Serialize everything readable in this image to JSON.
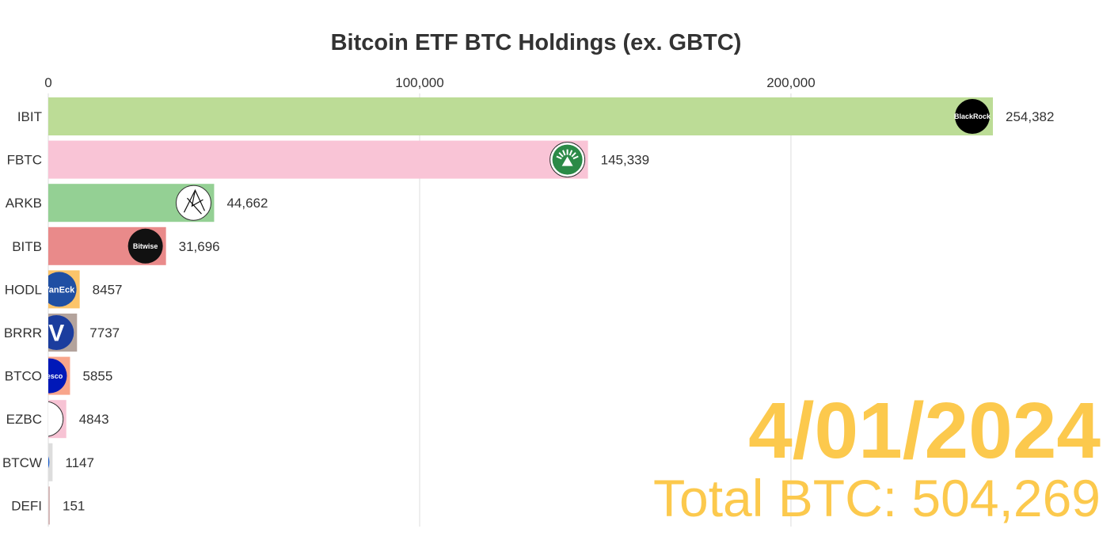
{
  "chart_data": {
    "type": "bar",
    "orientation": "horizontal",
    "title": "Bitcoin ETF BTC Holdings (ex. GBTC)",
    "xlim": [
      0,
      290000
    ],
    "x_ticks": [
      0,
      100000,
      200000
    ],
    "x_tick_labels": [
      "0",
      "100,000",
      "200,000"
    ],
    "grid": true,
    "categories": [
      "IBIT",
      "FBTC",
      "ARKB",
      "BITB",
      "HODL",
      "BRRR",
      "BTCO",
      "EZBC",
      "BTCW",
      "DEFI"
    ],
    "values": [
      254382,
      145339,
      44662,
      31696,
      8457,
      7737,
      5855,
      4843,
      1147,
      151
    ],
    "value_labels": [
      "254,382",
      "145,339",
      "44,662",
      "31,696",
      "8457",
      "7737",
      "5855",
      "4843",
      "1147",
      "151"
    ],
    "colors": [
      "#bcdc96",
      "#f9c4d6",
      "#94d094",
      "#e98a8a",
      "#fbc46a",
      "#b3a39c",
      "#f8a58b",
      "#f7c3d4",
      "#dddddd",
      "#d5b9b9"
    ],
    "logos": [
      {
        "icon": "blackrock-logo",
        "text": "BlackRock",
        "bg": "#000000",
        "fg": "#ffffff"
      },
      {
        "icon": "fidelity-logo",
        "text": "",
        "bg": "#ffffff",
        "fg": "#2b8a47"
      },
      {
        "icon": "ark-invest-logo",
        "text": "",
        "bg": "#ffffff",
        "fg": "#111111"
      },
      {
        "icon": "bitwise-logo",
        "text": "Bitwise",
        "bg": "#111111",
        "fg": "#ffffff"
      },
      {
        "icon": "vaneck-logo",
        "text": "VanEck",
        "bg": "#1f4fa3",
        "fg": "#ffffff"
      },
      {
        "icon": "valkyrie-logo",
        "text": "V",
        "bg": "#1b3d9e",
        "fg": "#ffffff"
      },
      {
        "icon": "invesco-logo",
        "text": "Invesco",
        "bg": "#0018b8",
        "fg": "#ffffff"
      },
      {
        "icon": "franklin-logo",
        "text": "",
        "bg": "#ffffff",
        "fg": "#666666"
      },
      {
        "icon": "wisdomtree-logo",
        "text": "",
        "bg": "#1b5fd1",
        "fg": "#ffffff"
      },
      {
        "icon": "hashdex-logo",
        "text": "",
        "bg": "#c04040",
        "fg": "#ffffff"
      }
    ],
    "date": "4/01/2024",
    "total_text": "Total BTC: 504,269"
  }
}
